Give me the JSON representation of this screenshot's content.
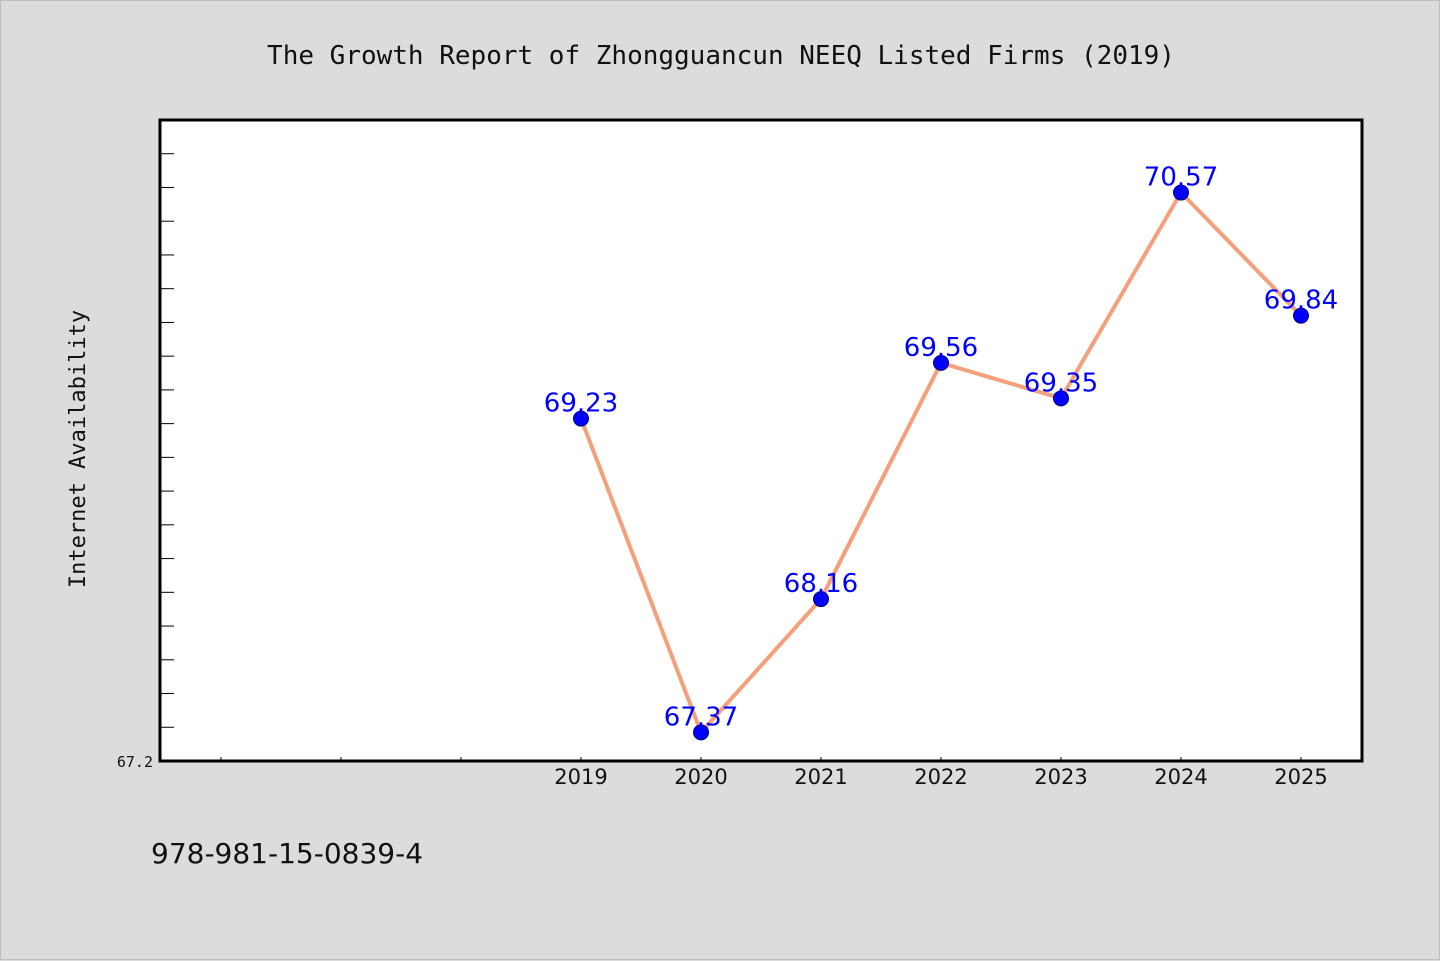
{
  "chart_data": {
    "type": "line",
    "title": "The Growth Report of Zhongguancun NEEQ Listed Firms (2019)",
    "ylabel": "Internet Availability",
    "xlabel": "",
    "categories": [
      "2019",
      "2020",
      "2021",
      "2022",
      "2023",
      "2024",
      "2025"
    ],
    "series": [
      {
        "values": [
          69.23,
          67.37,
          68.16,
          69.56,
          69.35,
          70.57,
          69.84
        ]
      }
    ],
    "data_labels": [
      "69.23",
      "67.37",
      "68.16",
      "69.56",
      "69.35",
      "70.57",
      "69.84"
    ],
    "y_tick_labels": [
      "67.2"
    ],
    "ylim": [
      67.2,
      71.0
    ],
    "grid": false,
    "colors": {
      "line": "#f4a07c",
      "marker": "#0000ff",
      "marker_edge": "#00007a",
      "label": "#0000ff",
      "plot_bg": "#ffffff",
      "page_bg": "#dcdcdc"
    }
  },
  "footer": {
    "isbn": "978-981-15-0839-4"
  }
}
